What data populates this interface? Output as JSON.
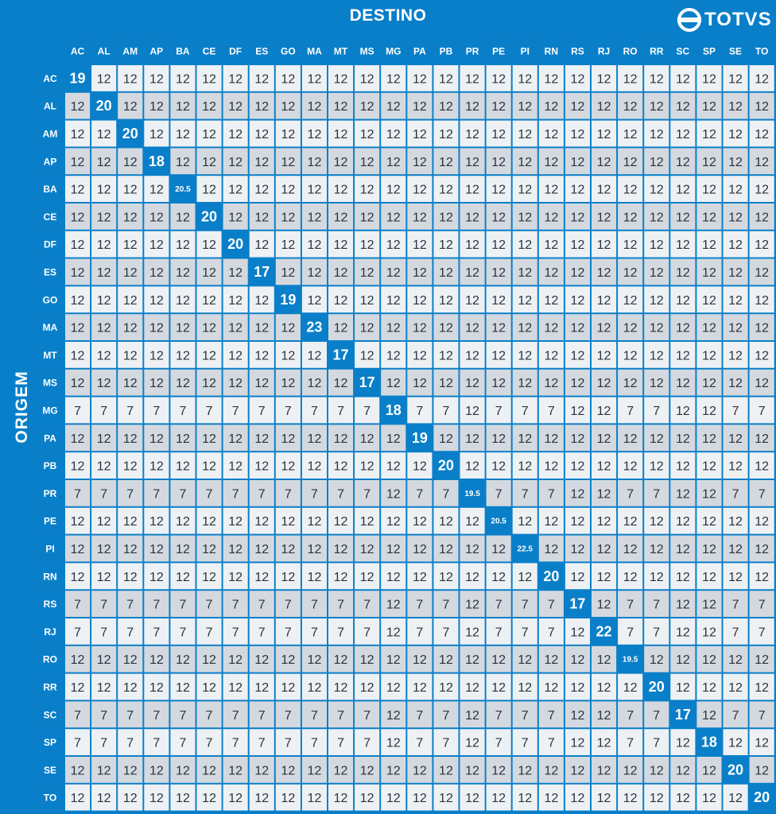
{
  "title": "DESTINO",
  "y_axis_label": "ORIGEM",
  "brand": {
    "name": "TOTVS",
    "icon": "totvs-logo-icon"
  },
  "colors": {
    "background": "#0a7fc9",
    "header_cell": "#0a7fc9",
    "highlight_cell": "#0a7fc9",
    "row_light": "#eef1f4",
    "row_dark": "#d4d9df",
    "text": "#2a3440"
  },
  "chart_data": {
    "type": "table",
    "columns": [
      "AC",
      "AL",
      "AM",
      "AP",
      "BA",
      "CE",
      "DF",
      "ES",
      "GO",
      "MA",
      "MT",
      "MS",
      "MG",
      "PA",
      "PB",
      "PR",
      "PE",
      "PI",
      "RN",
      "RS",
      "RJ",
      "RO",
      "RR",
      "SC",
      "SP",
      "SE",
      "TO"
    ],
    "rows": [
      "AC",
      "AL",
      "AM",
      "AP",
      "BA",
      "CE",
      "DF",
      "ES",
      "GO",
      "MA",
      "MT",
      "MS",
      "MG",
      "PA",
      "PB",
      "PR",
      "PE",
      "PI",
      "RN",
      "RS",
      "RJ",
      "RO",
      "RR",
      "SC",
      "SP",
      "SE",
      "TO"
    ],
    "values": [
      [
        "19",
        "12",
        "12",
        "12",
        "12",
        "12",
        "12",
        "12",
        "12",
        "12",
        "12",
        "12",
        "12",
        "12",
        "12",
        "12",
        "12",
        "12",
        "12",
        "12",
        "12",
        "12",
        "12",
        "12",
        "12",
        "12",
        "12"
      ],
      [
        "12",
        "20",
        "12",
        "12",
        "12",
        "12",
        "12",
        "12",
        "12",
        "12",
        "12",
        "12",
        "12",
        "12",
        "12",
        "12",
        "12",
        "12",
        "12",
        "12",
        "12",
        "12",
        "12",
        "12",
        "12",
        "12",
        "12"
      ],
      [
        "12",
        "12",
        "20",
        "12",
        "12",
        "12",
        "12",
        "12",
        "12",
        "12",
        "12",
        "12",
        "12",
        "12",
        "12",
        "12",
        "12",
        "12",
        "12",
        "12",
        "12",
        "12",
        "12",
        "12",
        "12",
        "12",
        "12"
      ],
      [
        "12",
        "12",
        "12",
        "18",
        "12",
        "12",
        "12",
        "12",
        "12",
        "12",
        "12",
        "12",
        "12",
        "12",
        "12",
        "12",
        "12",
        "12",
        "12",
        "12",
        "12",
        "12",
        "12",
        "12",
        "12",
        "12",
        "12"
      ],
      [
        "12",
        "12",
        "12",
        "12",
        "20.5",
        "12",
        "12",
        "12",
        "12",
        "12",
        "12",
        "12",
        "12",
        "12",
        "12",
        "12",
        "12",
        "12",
        "12",
        "12",
        "12",
        "12",
        "12",
        "12",
        "12",
        "12",
        "12"
      ],
      [
        "12",
        "12",
        "12",
        "12",
        "12",
        "20",
        "12",
        "12",
        "12",
        "12",
        "12",
        "12",
        "12",
        "12",
        "12",
        "12",
        "12",
        "12",
        "12",
        "12",
        "12",
        "12",
        "12",
        "12",
        "12",
        "12",
        "12"
      ],
      [
        "12",
        "12",
        "12",
        "12",
        "12",
        "12",
        "20",
        "12",
        "12",
        "12",
        "12",
        "12",
        "12",
        "12",
        "12",
        "12",
        "12",
        "12",
        "12",
        "12",
        "12",
        "12",
        "12",
        "12",
        "12",
        "12",
        "12"
      ],
      [
        "12",
        "12",
        "12",
        "12",
        "12",
        "12",
        "12",
        "17",
        "12",
        "12",
        "12",
        "12",
        "12",
        "12",
        "12",
        "12",
        "12",
        "12",
        "12",
        "12",
        "12",
        "12",
        "12",
        "12",
        "12",
        "12",
        "12"
      ],
      [
        "12",
        "12",
        "12",
        "12",
        "12",
        "12",
        "12",
        "12",
        "19",
        "12",
        "12",
        "12",
        "12",
        "12",
        "12",
        "12",
        "12",
        "12",
        "12",
        "12",
        "12",
        "12",
        "12",
        "12",
        "12",
        "12",
        "12"
      ],
      [
        "12",
        "12",
        "12",
        "12",
        "12",
        "12",
        "12",
        "12",
        "12",
        "23",
        "12",
        "12",
        "12",
        "12",
        "12",
        "12",
        "12",
        "12",
        "12",
        "12",
        "12",
        "12",
        "12",
        "12",
        "12",
        "12",
        "12"
      ],
      [
        "12",
        "12",
        "12",
        "12",
        "12",
        "12",
        "12",
        "12",
        "12",
        "12",
        "17",
        "12",
        "12",
        "12",
        "12",
        "12",
        "12",
        "12",
        "12",
        "12",
        "12",
        "12",
        "12",
        "12",
        "12",
        "12",
        "12"
      ],
      [
        "12",
        "12",
        "12",
        "12",
        "12",
        "12",
        "12",
        "12",
        "12",
        "12",
        "12",
        "17",
        "12",
        "12",
        "12",
        "12",
        "12",
        "12",
        "12",
        "12",
        "12",
        "12",
        "12",
        "12",
        "12",
        "12",
        "12"
      ],
      [
        "7",
        "7",
        "7",
        "7",
        "7",
        "7",
        "7",
        "7",
        "7",
        "7",
        "7",
        "7",
        "18",
        "7",
        "7",
        "12",
        "7",
        "7",
        "7",
        "12",
        "12",
        "7",
        "7",
        "12",
        "12",
        "7",
        "7"
      ],
      [
        "12",
        "12",
        "12",
        "12",
        "12",
        "12",
        "12",
        "12",
        "12",
        "12",
        "12",
        "12",
        "12",
        "19",
        "12",
        "12",
        "12",
        "12",
        "12",
        "12",
        "12",
        "12",
        "12",
        "12",
        "12",
        "12",
        "12"
      ],
      [
        "12",
        "12",
        "12",
        "12",
        "12",
        "12",
        "12",
        "12",
        "12",
        "12",
        "12",
        "12",
        "12",
        "12",
        "20",
        "12",
        "12",
        "12",
        "12",
        "12",
        "12",
        "12",
        "12",
        "12",
        "12",
        "12",
        "12"
      ],
      [
        "7",
        "7",
        "7",
        "7",
        "7",
        "7",
        "7",
        "7",
        "7",
        "7",
        "7",
        "7",
        "12",
        "7",
        "7",
        "19.5",
        "7",
        "7",
        "7",
        "12",
        "12",
        "7",
        "7",
        "12",
        "12",
        "7",
        "7"
      ],
      [
        "12",
        "12",
        "12",
        "12",
        "12",
        "12",
        "12",
        "12",
        "12",
        "12",
        "12",
        "12",
        "12",
        "12",
        "12",
        "12",
        "20.5",
        "12",
        "12",
        "12",
        "12",
        "12",
        "12",
        "12",
        "12",
        "12",
        "12"
      ],
      [
        "12",
        "12",
        "12",
        "12",
        "12",
        "12",
        "12",
        "12",
        "12",
        "12",
        "12",
        "12",
        "12",
        "12",
        "12",
        "12",
        "12",
        "22.5",
        "12",
        "12",
        "12",
        "12",
        "12",
        "12",
        "12",
        "12",
        "12"
      ],
      [
        "12",
        "12",
        "12",
        "12",
        "12",
        "12",
        "12",
        "12",
        "12",
        "12",
        "12",
        "12",
        "12",
        "12",
        "12",
        "12",
        "12",
        "12",
        "20",
        "12",
        "12",
        "12",
        "12",
        "12",
        "12",
        "12",
        "12"
      ],
      [
        "7",
        "7",
        "7",
        "7",
        "7",
        "7",
        "7",
        "7",
        "7",
        "7",
        "7",
        "7",
        "12",
        "7",
        "7",
        "12",
        "7",
        "7",
        "7",
        "17",
        "12",
        "7",
        "7",
        "12",
        "12",
        "7",
        "7"
      ],
      [
        "7",
        "7",
        "7",
        "7",
        "7",
        "7",
        "7",
        "7",
        "7",
        "7",
        "7",
        "7",
        "12",
        "7",
        "7",
        "12",
        "7",
        "7",
        "7",
        "12",
        "22",
        "7",
        "7",
        "12",
        "12",
        "7",
        "7"
      ],
      [
        "12",
        "12",
        "12",
        "12",
        "12",
        "12",
        "12",
        "12",
        "12",
        "12",
        "12",
        "12",
        "12",
        "12",
        "12",
        "12",
        "12",
        "12",
        "12",
        "12",
        "12",
        "19.5",
        "12",
        "12",
        "12",
        "12",
        "12"
      ],
      [
        "12",
        "12",
        "12",
        "12",
        "12",
        "12",
        "12",
        "12",
        "12",
        "12",
        "12",
        "12",
        "12",
        "12",
        "12",
        "12",
        "12",
        "12",
        "12",
        "12",
        "12",
        "12",
        "20",
        "12",
        "12",
        "12",
        "12"
      ],
      [
        "7",
        "7",
        "7",
        "7",
        "7",
        "7",
        "7",
        "7",
        "7",
        "7",
        "7",
        "7",
        "12",
        "7",
        "7",
        "12",
        "7",
        "7",
        "7",
        "12",
        "12",
        "7",
        "7",
        "17",
        "12",
        "7",
        "7"
      ],
      [
        "7",
        "7",
        "7",
        "7",
        "7",
        "7",
        "7",
        "7",
        "7",
        "7",
        "7",
        "7",
        "12",
        "7",
        "7",
        "12",
        "7",
        "7",
        "7",
        "12",
        "12",
        "7",
        "7",
        "12",
        "18",
        "12",
        "12"
      ],
      [
        "12",
        "12",
        "12",
        "12",
        "12",
        "12",
        "12",
        "12",
        "12",
        "12",
        "12",
        "12",
        "12",
        "12",
        "12",
        "12",
        "12",
        "12",
        "12",
        "12",
        "12",
        "12",
        "12",
        "12",
        "12",
        "20",
        "12"
      ],
      [
        "12",
        "12",
        "12",
        "12",
        "12",
        "12",
        "12",
        "12",
        "12",
        "12",
        "12",
        "12",
        "12",
        "12",
        "12",
        "12",
        "12",
        "12",
        "12",
        "12",
        "12",
        "12",
        "12",
        "12",
        "12",
        "12",
        "20"
      ]
    ],
    "highlight": "diagonal"
  }
}
